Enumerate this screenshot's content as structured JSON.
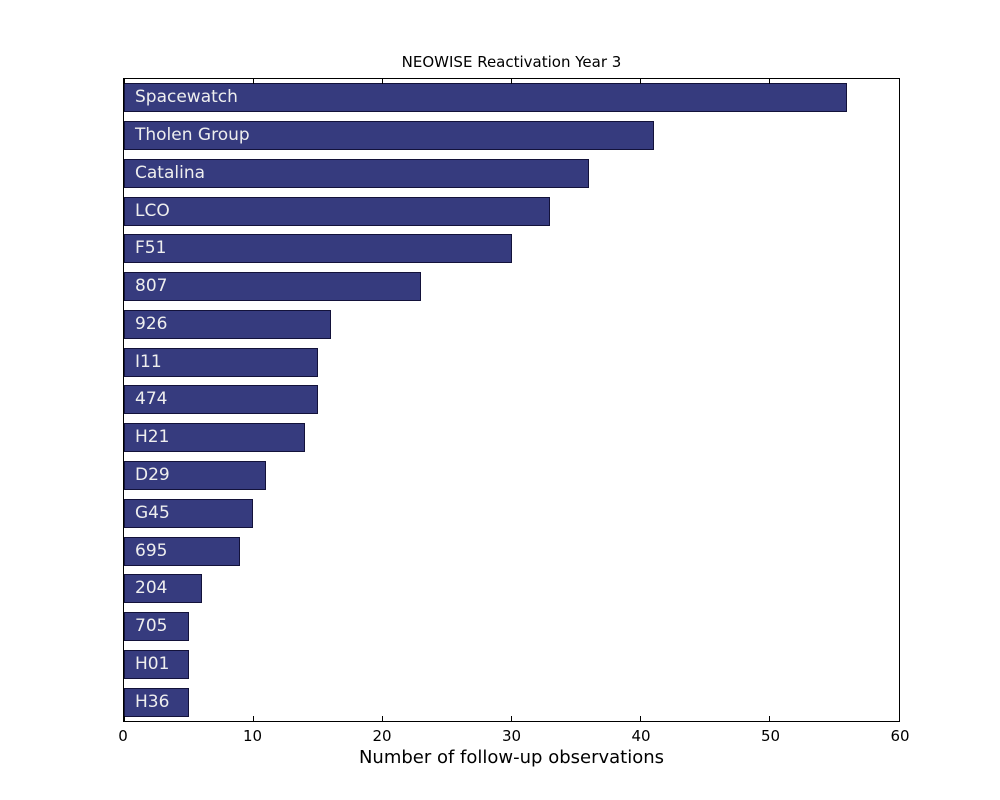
{
  "figure": {
    "title": "NEOWISE Reactivation Year 3",
    "xlabel": "Number of follow-up observations"
  },
  "colors": {
    "bar_fill": "#363b7e",
    "bar_edge": "#13123a",
    "bar_text": "#eeeeee",
    "frame": "#000000",
    "background": "#ffffff"
  },
  "chart_data": {
    "type": "bar",
    "orientation": "horizontal",
    "title": "NEOWISE Reactivation Year 3",
    "xlabel": "Number of follow-up observations",
    "ylabel": "",
    "categories": [
      "Spacewatch",
      "Tholen Group",
      "Catalina",
      "LCO",
      "F51",
      "807",
      "926",
      "I11",
      "474",
      "H21",
      "D29",
      "G45",
      "695",
      "204",
      "705",
      "H01",
      "H36"
    ],
    "values": [
      56,
      41,
      36,
      33,
      30,
      23,
      16,
      15,
      15,
      14,
      11,
      10,
      9,
      6,
      5,
      5,
      5
    ],
    "xlim": [
      0,
      60
    ],
    "xticks": [
      0,
      10,
      20,
      30,
      40,
      50,
      60
    ],
    "grid": false,
    "legend": null,
    "bar_label_position": "inside-left",
    "tick_direction": "in"
  }
}
